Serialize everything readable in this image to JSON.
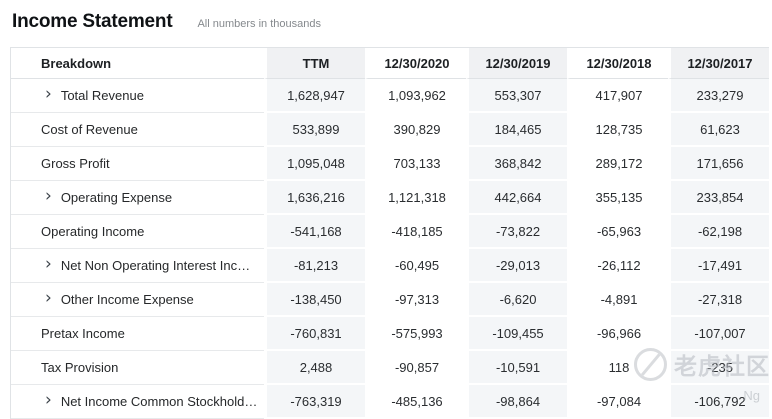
{
  "page": {
    "title": "Income Statement",
    "subtitle": "All numbers in thousands"
  },
  "table": {
    "columns": [
      "Breakdown",
      "TTM",
      "12/30/2020",
      "12/30/2019",
      "12/30/2018",
      "12/30/2017"
    ],
    "shaded_columns": [
      "TTM",
      "12/30/2019",
      "12/30/2017"
    ],
    "rows": [
      {
        "label": "Total Revenue",
        "expandable": true,
        "values": [
          "1,628,947",
          "1,093,962",
          "553,307",
          "417,907",
          "233,279"
        ]
      },
      {
        "label": "Cost of Revenue",
        "expandable": false,
        "values": [
          "533,899",
          "390,829",
          "184,465",
          "128,735",
          "61,623"
        ]
      },
      {
        "label": "Gross Profit",
        "expandable": false,
        "values": [
          "1,095,048",
          "703,133",
          "368,842",
          "289,172",
          "171,656"
        ]
      },
      {
        "label": "Operating Expense",
        "expandable": true,
        "values": [
          "1,636,216",
          "1,121,318",
          "442,664",
          "355,135",
          "233,854"
        ]
      },
      {
        "label": "Operating Income",
        "expandable": false,
        "values": [
          "-541,168",
          "-418,185",
          "-73,822",
          "-65,963",
          "-62,198"
        ]
      },
      {
        "label": "Net Non Operating Interest Inc…",
        "expandable": true,
        "values": [
          "-81,213",
          "-60,495",
          "-29,013",
          "-26,112",
          "-17,491"
        ]
      },
      {
        "label": "Other Income Expense",
        "expandable": true,
        "values": [
          "-138,450",
          "-97,313",
          "-6,620",
          "-4,891",
          "-27,318"
        ]
      },
      {
        "label": "Pretax Income",
        "expandable": false,
        "values": [
          "-760,831",
          "-575,993",
          "-109,455",
          "-96,966",
          "-107,007"
        ]
      },
      {
        "label": "Tax Provision",
        "expandable": false,
        "values": [
          "2,488",
          "-90,857",
          "-10,591",
          "118",
          "-235"
        ]
      },
      {
        "label": "Net Income Common Stockhold…",
        "expandable": true,
        "values": [
          "-763,319",
          "-485,136",
          "-98,864",
          "-97,084",
          "-106,792"
        ]
      }
    ]
  },
  "icons": {
    "chevron_right": "›"
  },
  "colors": {
    "shaded_column_bg": "#f4f6f8",
    "shaded_header_bg": "#f0f1f3",
    "row_border": "#e7e9eb",
    "header_border": "#dfe2e5",
    "text_primary": "#26282a",
    "subtitle_gray": "#85898d"
  },
  "watermark": {
    "logo": "tiger-community-logo",
    "text": "老虎社区",
    "sub_text": "Ng"
  }
}
